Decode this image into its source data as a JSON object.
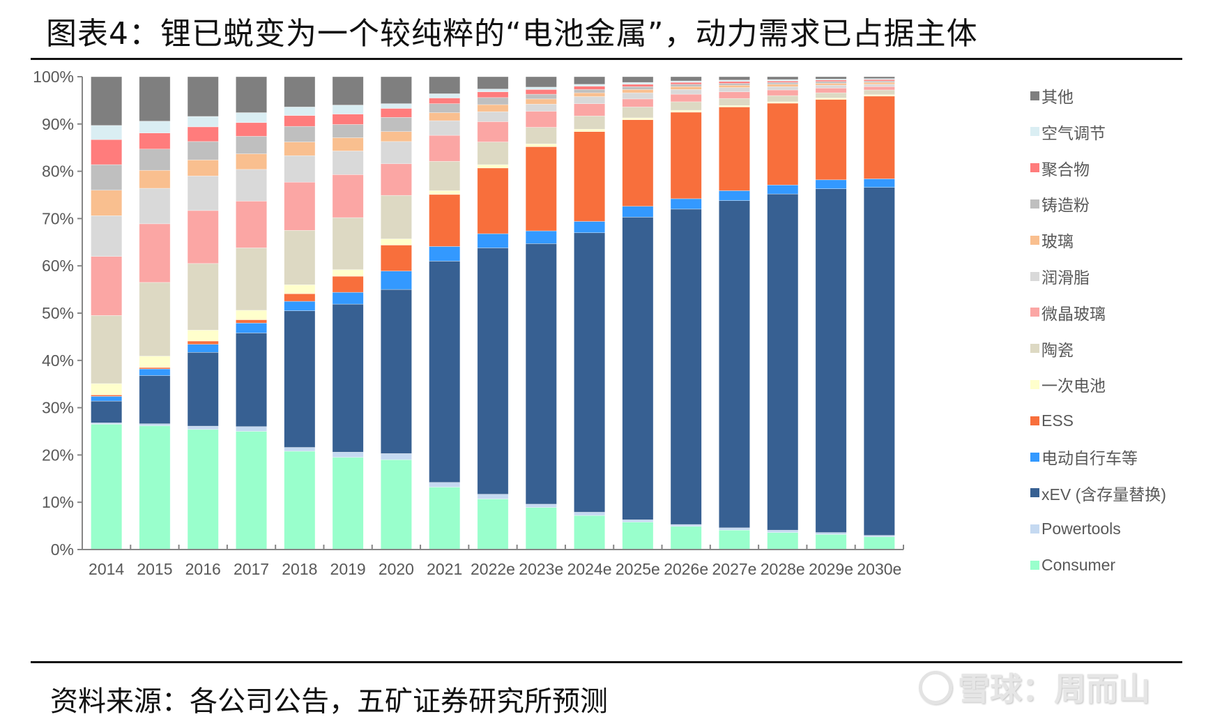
{
  "header": {
    "title": "图表4：锂已蜕变为一个较纯粹的“电池金属”，动力需求已占据主体"
  },
  "footer": {
    "source": "资料来源：各公司公告，五矿证券研究所预测",
    "watermark": "雪球：周而山"
  },
  "chart_data": {
    "type": "bar",
    "stacked": true,
    "percent": true,
    "title": "锂已蜕变为一个较纯粹的“电池金属”，动力需求已占据主体",
    "xlabel": "",
    "ylabel": "",
    "ylim": [
      0,
      100
    ],
    "yticks": [
      "0%",
      "10%",
      "20%",
      "30%",
      "40%",
      "50%",
      "60%",
      "70%",
      "80%",
      "90%",
      "100%"
    ],
    "legend_position": "right",
    "grid": false,
    "categories": [
      "2014",
      "2015",
      "2016",
      "2017",
      "2018",
      "2019",
      "2020",
      "2021",
      "2022e",
      "2023e",
      "2024e",
      "2025e",
      "2026e",
      "2027e",
      "2028e",
      "2029e",
      "2030e"
    ],
    "series": [
      {
        "name": "Consumer",
        "color": "#99FFCC",
        "values": [
          26.5,
          26.2,
          25.4,
          25.0,
          20.8,
          19.5,
          19.0,
          13.2,
          10.7,
          8.9,
          7.2,
          5.8,
          4.9,
          4.1,
          3.6,
          3.2,
          2.7
        ]
      },
      {
        "name": "Powertools",
        "color": "#C5D9F1",
        "values": [
          0.3,
          0.4,
          0.7,
          1.0,
          0.8,
          1.1,
          1.3,
          1.0,
          1.0,
          0.7,
          0.7,
          0.5,
          0.4,
          0.5,
          0.5,
          0.4,
          0.3
        ]
      },
      {
        "name": "xEV (含存量替换)",
        "color": "#376092",
        "values": [
          4.6,
          10.2,
          15.6,
          19.8,
          28.9,
          31.3,
          34.7,
          46.8,
          52.1,
          55.1,
          59.1,
          64.0,
          66.7,
          69.2,
          71.1,
          72.7,
          73.6
        ]
      },
      {
        "name": "电动自行车等",
        "color": "#3399FF",
        "values": [
          1.0,
          1.4,
          1.7,
          2.1,
          2.0,
          2.5,
          3.9,
          3.1,
          3.0,
          2.7,
          2.4,
          2.3,
          2.2,
          2.1,
          1.9,
          1.9,
          1.8
        ]
      },
      {
        "name": "ESS",
        "color": "#F86F3C",
        "values": [
          0.3,
          0.3,
          0.7,
          0.7,
          1.6,
          3.4,
          5.5,
          11.0,
          13.9,
          17.8,
          19.0,
          18.3,
          18.3,
          17.7,
          17.3,
          17.0,
          17.5
        ]
      },
      {
        "name": "一次电池",
        "color": "#FFFFCC",
        "values": [
          2.4,
          2.4,
          2.3,
          2.0,
          1.9,
          1.4,
          1.3,
          0.8,
          0.7,
          0.6,
          0.5,
          0.4,
          0.4,
          0.3,
          0.3,
          0.3,
          0.3
        ]
      },
      {
        "name": "陶瓷",
        "color": "#DDD9C3",
        "values": [
          14.4,
          15.6,
          14.1,
          13.2,
          11.5,
          11.0,
          9.2,
          6.2,
          4.8,
          3.5,
          2.8,
          2.3,
          1.8,
          1.5,
          1.3,
          1.1,
          1.0
        ]
      },
      {
        "name": "微晶玻璃",
        "color": "#FBA6A4",
        "values": [
          12.5,
          12.4,
          11.2,
          9.9,
          10.2,
          9.1,
          6.7,
          5.5,
          4.3,
          3.4,
          2.6,
          1.7,
          1.6,
          1.4,
          1.2,
          1.0,
          0.7
        ]
      },
      {
        "name": "润滑脂",
        "color": "#D9D9D9",
        "values": [
          8.6,
          7.5,
          7.3,
          6.7,
          5.6,
          5.0,
          4.7,
          3.1,
          2.1,
          1.5,
          1.5,
          1.3,
          1.0,
          0.9,
          0.7,
          0.6,
          0.5
        ]
      },
      {
        "name": "玻璃",
        "color": "#F9BF8F",
        "values": [
          5.4,
          3.8,
          3.4,
          3.3,
          2.9,
          2.8,
          2.1,
          1.7,
          1.5,
          1.1,
          0.8,
          0.7,
          0.6,
          0.5,
          0.5,
          0.4,
          0.4
        ]
      },
      {
        "name": "铸造粉",
        "color": "#BFBFBF",
        "values": [
          5.4,
          4.5,
          3.9,
          3.7,
          3.3,
          2.8,
          3.0,
          1.9,
          1.5,
          1.0,
          0.7,
          0.6,
          0.5,
          0.4,
          0.4,
          0.4,
          0.3
        ]
      },
      {
        "name": "聚合物",
        "color": "#FF7C7C",
        "values": [
          5.3,
          3.4,
          3.1,
          2.9,
          2.3,
          2.2,
          1.9,
          1.2,
          1.2,
          1.0,
          0.7,
          0.5,
          0.4,
          0.4,
          0.3,
          0.3,
          0.3
        ]
      },
      {
        "name": "空气调节",
        "color": "#DAEEF3",
        "values": [
          3.0,
          2.5,
          2.2,
          2.1,
          1.8,
          1.9,
          1.0,
          0.9,
          0.6,
          0.5,
          0.4,
          0.4,
          0.3,
          0.3,
          0.3,
          0.2,
          0.2
        ]
      },
      {
        "name": "其他",
        "color": "#7F7F7F",
        "values": [
          10.3,
          9.4,
          8.4,
          7.6,
          6.4,
          6.0,
          5.7,
          3.6,
          2.6,
          2.2,
          1.6,
          1.2,
          0.9,
          0.7,
          0.6,
          0.5,
          0.4
        ]
      }
    ],
    "legend_order": [
      "其他",
      "空气调节",
      "聚合物",
      "铸造粉",
      "玻璃",
      "润滑脂",
      "微晶玻璃",
      "陶瓷",
      "一次电池",
      "ESS",
      "电动自行车等",
      "xEV (含存量替换)",
      "Powertools",
      "Consumer"
    ]
  }
}
